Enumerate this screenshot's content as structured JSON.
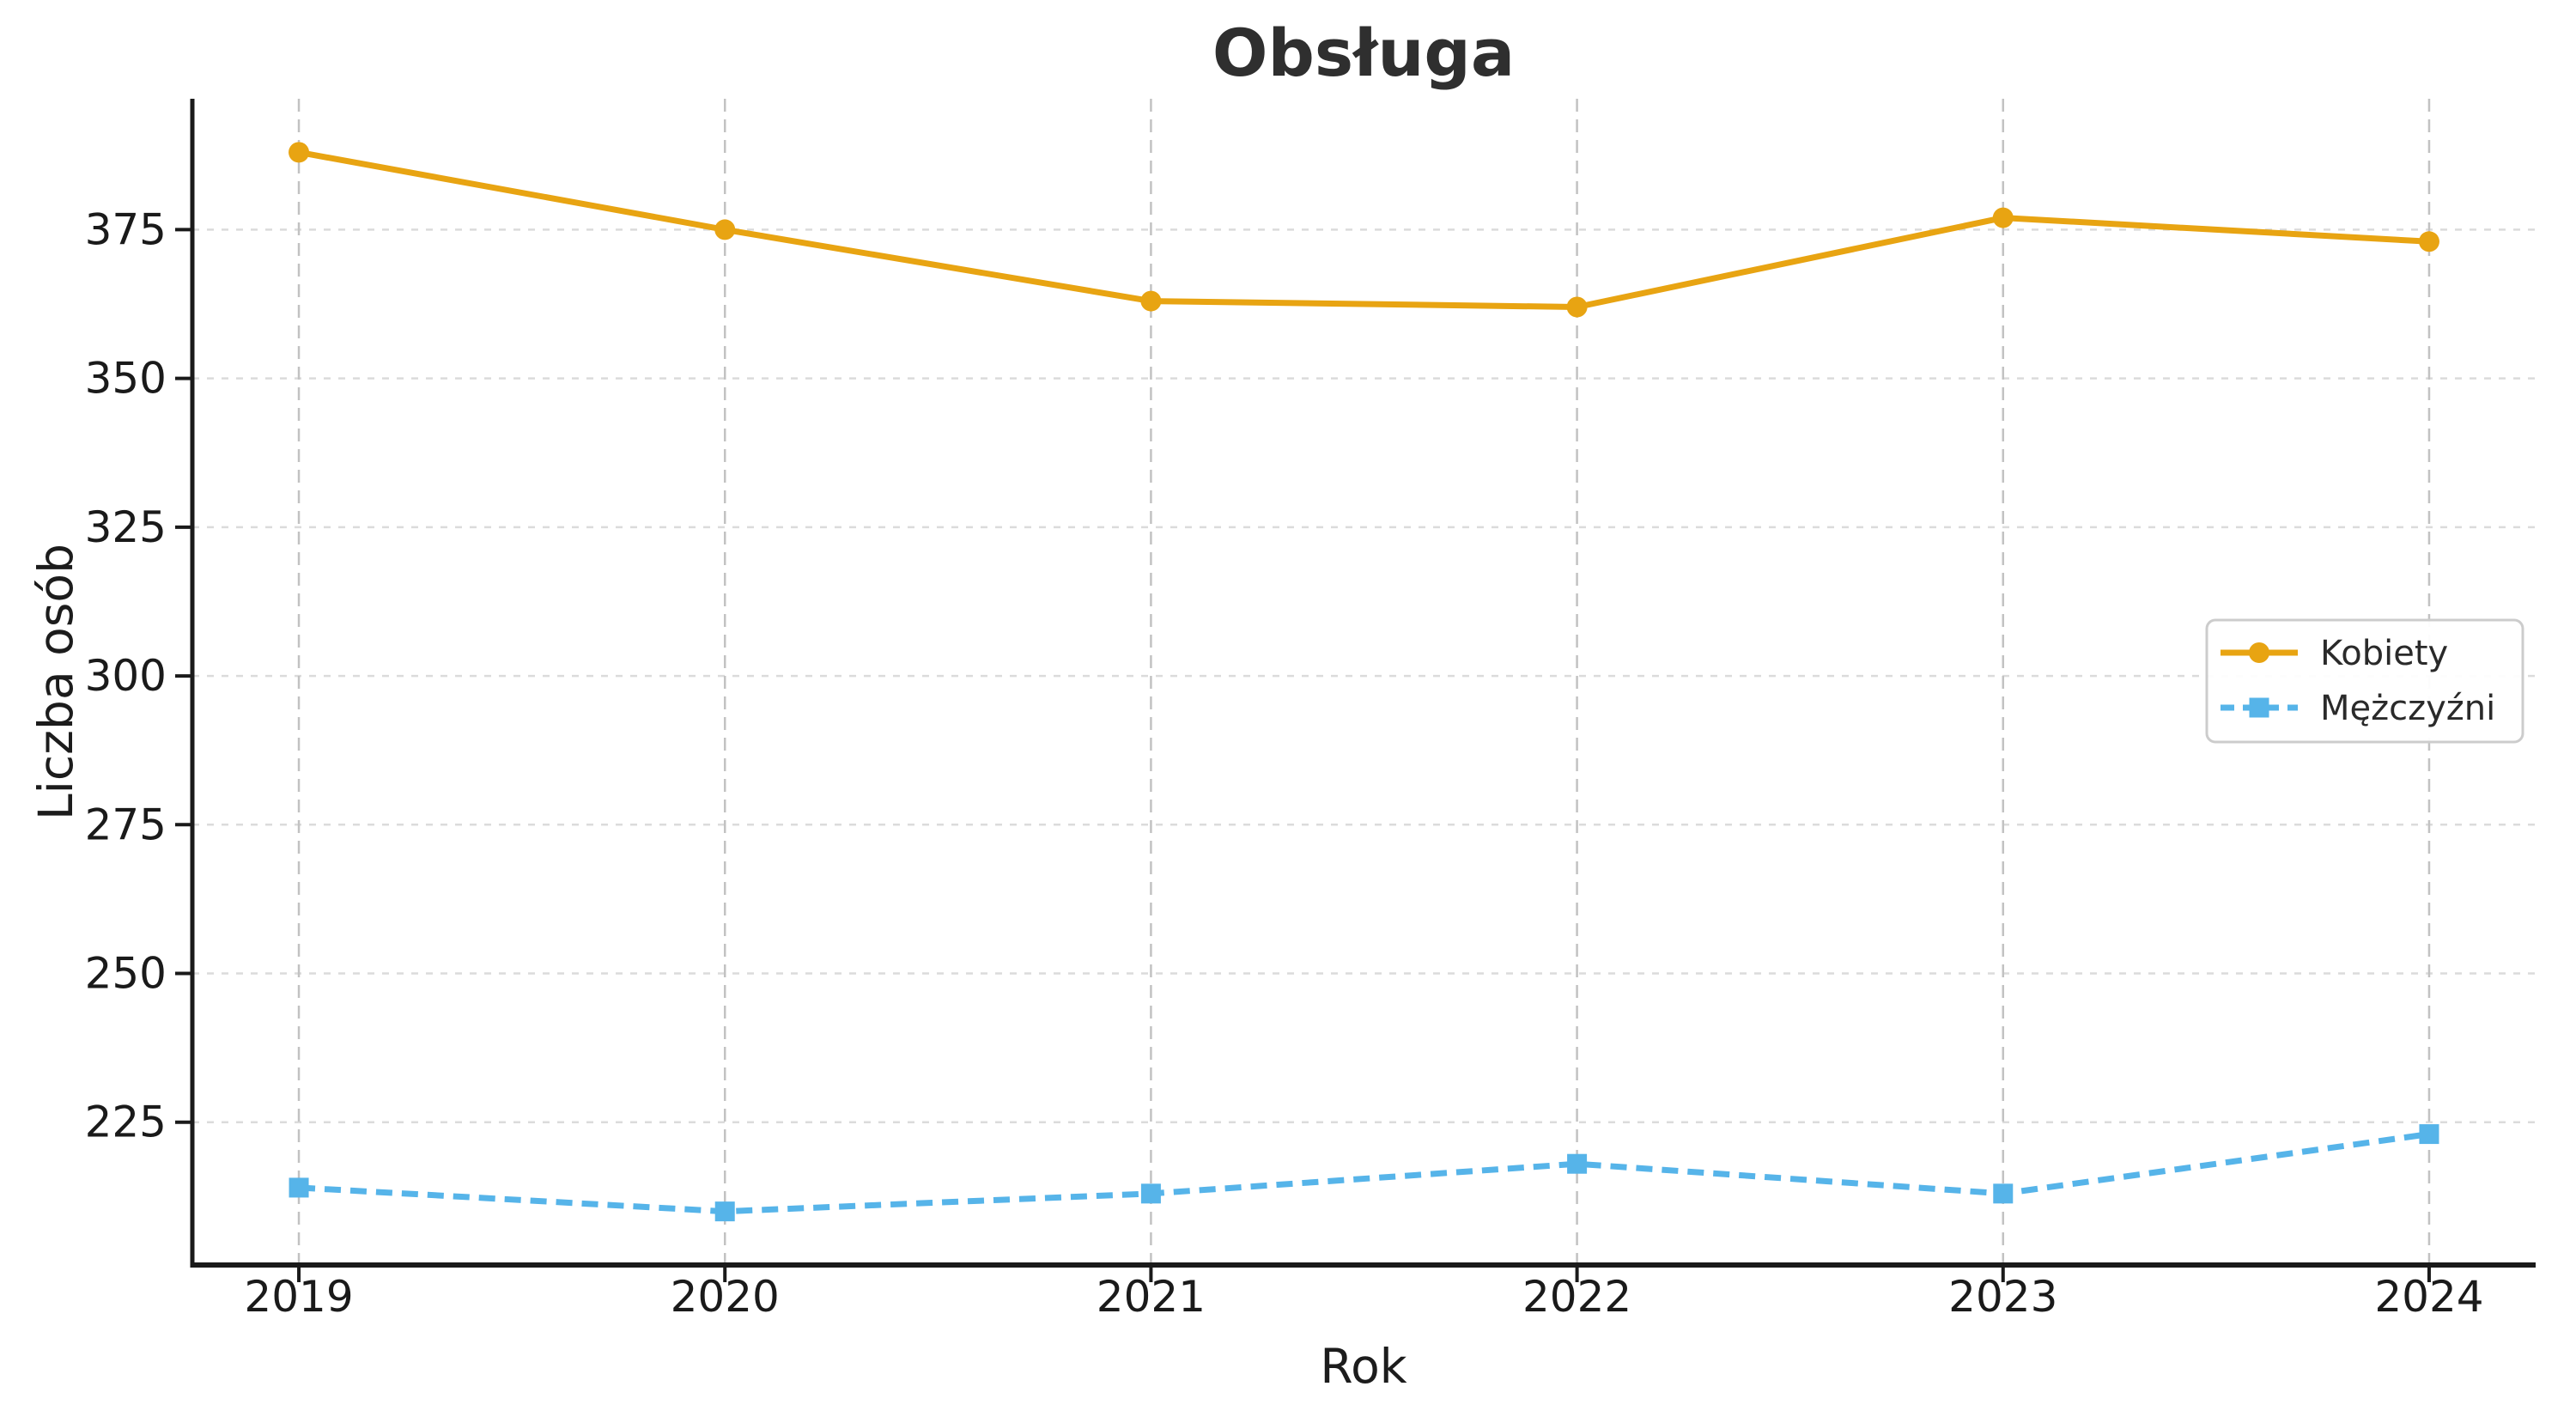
{
  "chart_data": {
    "type": "line",
    "title": "Obsługa",
    "xlabel": "Rok",
    "ylabel": "Liczba osób",
    "categories": [
      2019,
      2020,
      2021,
      2022,
      2023,
      2024
    ],
    "series": [
      {
        "name": "Kobiety",
        "values": [
          388,
          375,
          363,
          362,
          377,
          373
        ],
        "color": "#E8A412",
        "line_style": "solid",
        "marker": "circle"
      },
      {
        "name": "Mężczyźni",
        "values": [
          214,
          210,
          213,
          218,
          213,
          223
        ],
        "color": "#56B4E9",
        "line_style": "dashed",
        "marker": "square"
      }
    ],
    "yticks": [
      225,
      250,
      275,
      300,
      325,
      350,
      375
    ],
    "xtick_labels": [
      "2019",
      "2020",
      "2021",
      "2022",
      "2023",
      "2024"
    ],
    "ylim": [
      201,
      397
    ],
    "xlim": [
      2018.75,
      2024.25
    ],
    "grid": true,
    "grid_color_horizontal": "#DBDBDB",
    "grid_color_vertical": "#C2C2C2",
    "spine_color": "#1a1a1a",
    "legend_position": "center right"
  }
}
